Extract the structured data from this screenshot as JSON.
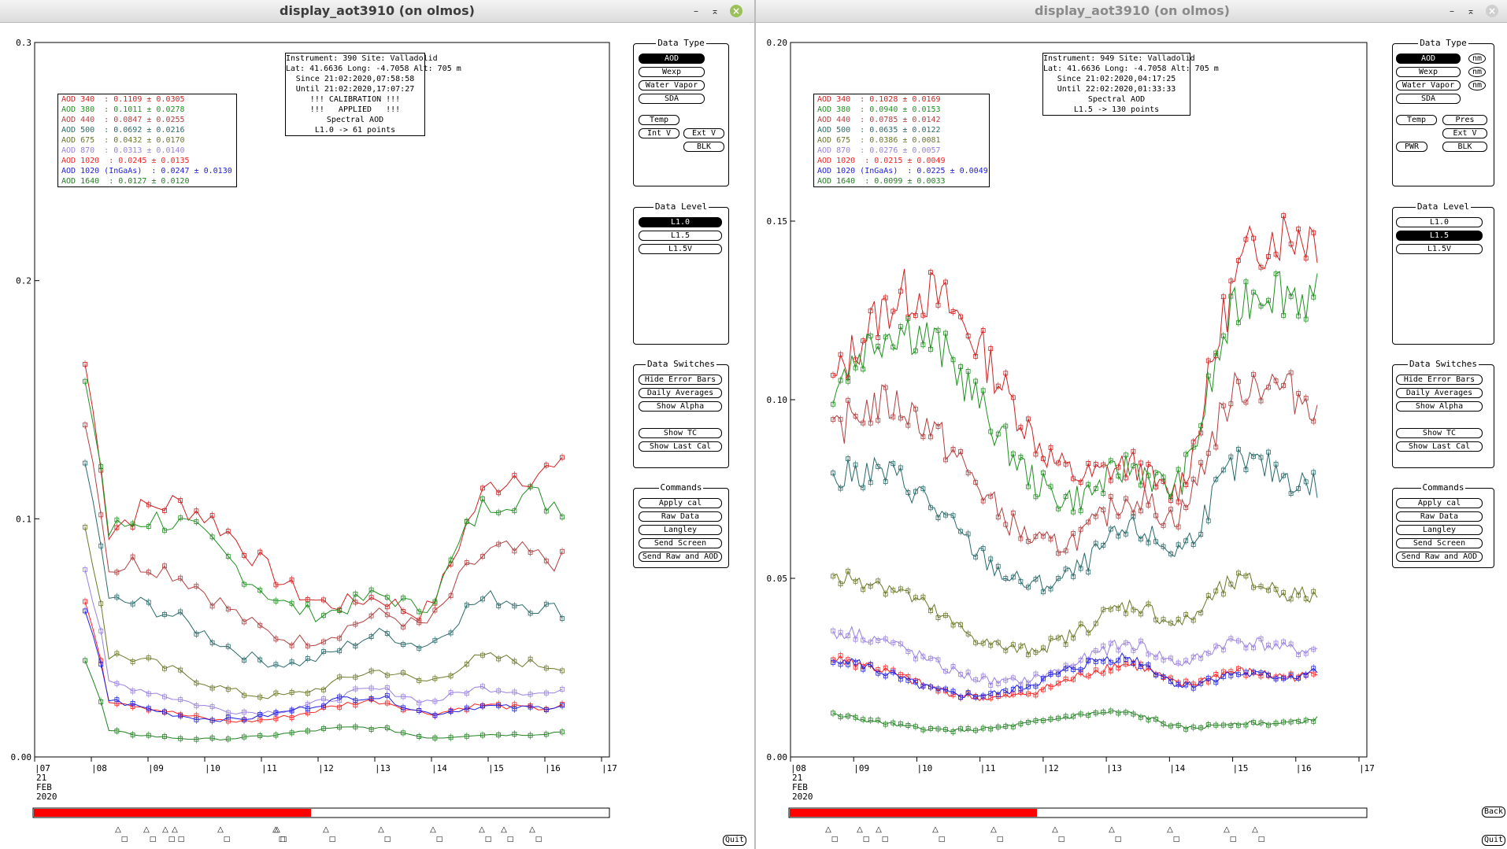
{
  "windows": [
    {
      "title": "display_aot3910 (on olmos)",
      "ymax": 0.3,
      "yticks": [
        "0.00",
        "0.1",
        "0.2",
        "0.3"
      ],
      "ytick_values": [
        0,
        0.1,
        0.2,
        0.3
      ],
      "xticks": [
        "07",
        "08",
        "09",
        "10",
        "11",
        "12",
        "13",
        "14",
        "15",
        "16",
        "17"
      ],
      "date_label": [
        "21",
        "FEB",
        "2020"
      ],
      "info": "Instrument: 390 Site: Valladolid\nLat: 41.6636 Long: -4.7058 Alt: 705 m\nSince 21:02:2020,07:58:58\nUntil 21:02:2020,17:07:27\n!!! CALIBRATION !!!\n!!!   APPLIED   !!!\nSpectral AOD\nL1.0 -> 61 points",
      "legend": [
        {
          "text": "AOD 340  : 0.1109 ± 0.0305",
          "color": "#d02020"
        },
        {
          "text": "AOD 380  : 0.1011 ± 0.0278",
          "color": "#209020"
        },
        {
          "text": "AOD 440  : 0.0847 ± 0.0255",
          "color": "#b04040"
        },
        {
          "text": "AOD 500  : 0.0692 ± 0.0216",
          "color": "#2a6a6a"
        },
        {
          "text": "AOD 675  : 0.0432 ± 0.0170",
          "color": "#6b7a2a"
        },
        {
          "text": "AOD 870  : 0.0313 ± 0.0140",
          "color": "#9a80e0"
        },
        {
          "text": "AOD 1020  : 0.0245 ± 0.0135",
          "color": "#ff2020"
        },
        {
          "text": "AOD 1020 (InGaAs)  : 0.0247 ± 0.0130",
          "color": "#2020e0"
        },
        {
          "text": "AOD 1640  : 0.0127 ± 0.0120",
          "color": "#208020"
        }
      ],
      "panels": {
        "data_type": {
          "title": "Data Type",
          "buttons": [
            "AOD",
            "Wexp",
            "Water Vapor",
            "SDA",
            "Temp",
            "Int V",
            "Ext V",
            "BLK"
          ],
          "selected": "AOD"
        },
        "data_level": {
          "title": "Data Level",
          "buttons": [
            "L1.0",
            "L1.5",
            "L1.5V"
          ],
          "selected": "L1.0"
        },
        "data_switches": {
          "title": "Data Switches",
          "buttons": [
            "Hide Error Bars",
            "Daily Averages",
            "Show Alpha",
            "Show TC",
            "Show Last Cal"
          ]
        },
        "commands": {
          "title": "Commands",
          "buttons": [
            "Apply cal",
            "Raw Data",
            "Langley",
            "Send Screen",
            "Send Raw and AOD"
          ]
        }
      },
      "quit_label": "Quit"
    },
    {
      "title": "display_aot3910 (on olmos)",
      "ymax": 0.2,
      "yticks": [
        "0.00",
        "0.05",
        "0.10",
        "0.15",
        "0.20"
      ],
      "ytick_values": [
        0,
        0.05,
        0.1,
        0.15,
        0.2
      ],
      "xticks": [
        "08",
        "09",
        "10",
        "11",
        "12",
        "13",
        "14",
        "15",
        "16",
        "17"
      ],
      "date_label": [
        "21",
        "FEB",
        "2020"
      ],
      "info": "Instrument: 949 Site: Valladolid\nLat: 41.6636 Long: -4.7058 Alt: 705 m\nSince 21:02:2020,04:17:25\nUntil 22:02:2020,01:33:33\nSpectral AOD\nL1.5 -> 130 points",
      "legend": [
        {
          "text": "AOD 340  : 0.1028 ± 0.0169",
          "color": "#d02020"
        },
        {
          "text": "AOD 380  : 0.0940 ± 0.0153",
          "color": "#209020"
        },
        {
          "text": "AOD 440  : 0.0785 ± 0.0142",
          "color": "#b04040"
        },
        {
          "text": "AOD 500  : 0.0635 ± 0.0122",
          "color": "#2a6a6a"
        },
        {
          "text": "AOD 675  : 0.0386 ± 0.0081",
          "color": "#6b7a2a"
        },
        {
          "text": "AOD 870  : 0.0276 ± 0.0057",
          "color": "#9a80e0"
        },
        {
          "text": "AOD 1020  : 0.0215 ± 0.0049",
          "color": "#ff2020"
        },
        {
          "text": "AOD 1020 (InGaAs)  : 0.0225 ± 0.0049",
          "color": "#2020e0"
        },
        {
          "text": "AOD 1640  : 0.0099 ± 0.0033",
          "color": "#208020"
        }
      ],
      "panels": {
        "data_type": {
          "title": "Data Type",
          "buttons": [
            "AOD",
            "Wexp",
            "Water Vapor",
            "SDA",
            "Temp",
            "Pres",
            "Ext V",
            "PWR",
            "BLK"
          ],
          "small_buttons": [
            "nm",
            "nm",
            "nm"
          ],
          "selected": "AOD"
        },
        "data_level": {
          "title": "Data Level",
          "buttons": [
            "L1.0",
            "L1.5",
            "L1.5V"
          ],
          "selected": "L1.5"
        },
        "data_switches": {
          "title": "Data Switches",
          "buttons": [
            "Hide Error Bars",
            "Daily Averages",
            "Show Alpha",
            "Show TC",
            "Show Last Cal"
          ]
        },
        "commands": {
          "title": "Commands",
          "buttons": [
            "Apply cal",
            "Raw Data",
            "Langley",
            "Send Screen",
            "Send Raw and AOD"
          ]
        }
      },
      "back_label": "Back",
      "quit_label": "Quit"
    }
  ]
}
